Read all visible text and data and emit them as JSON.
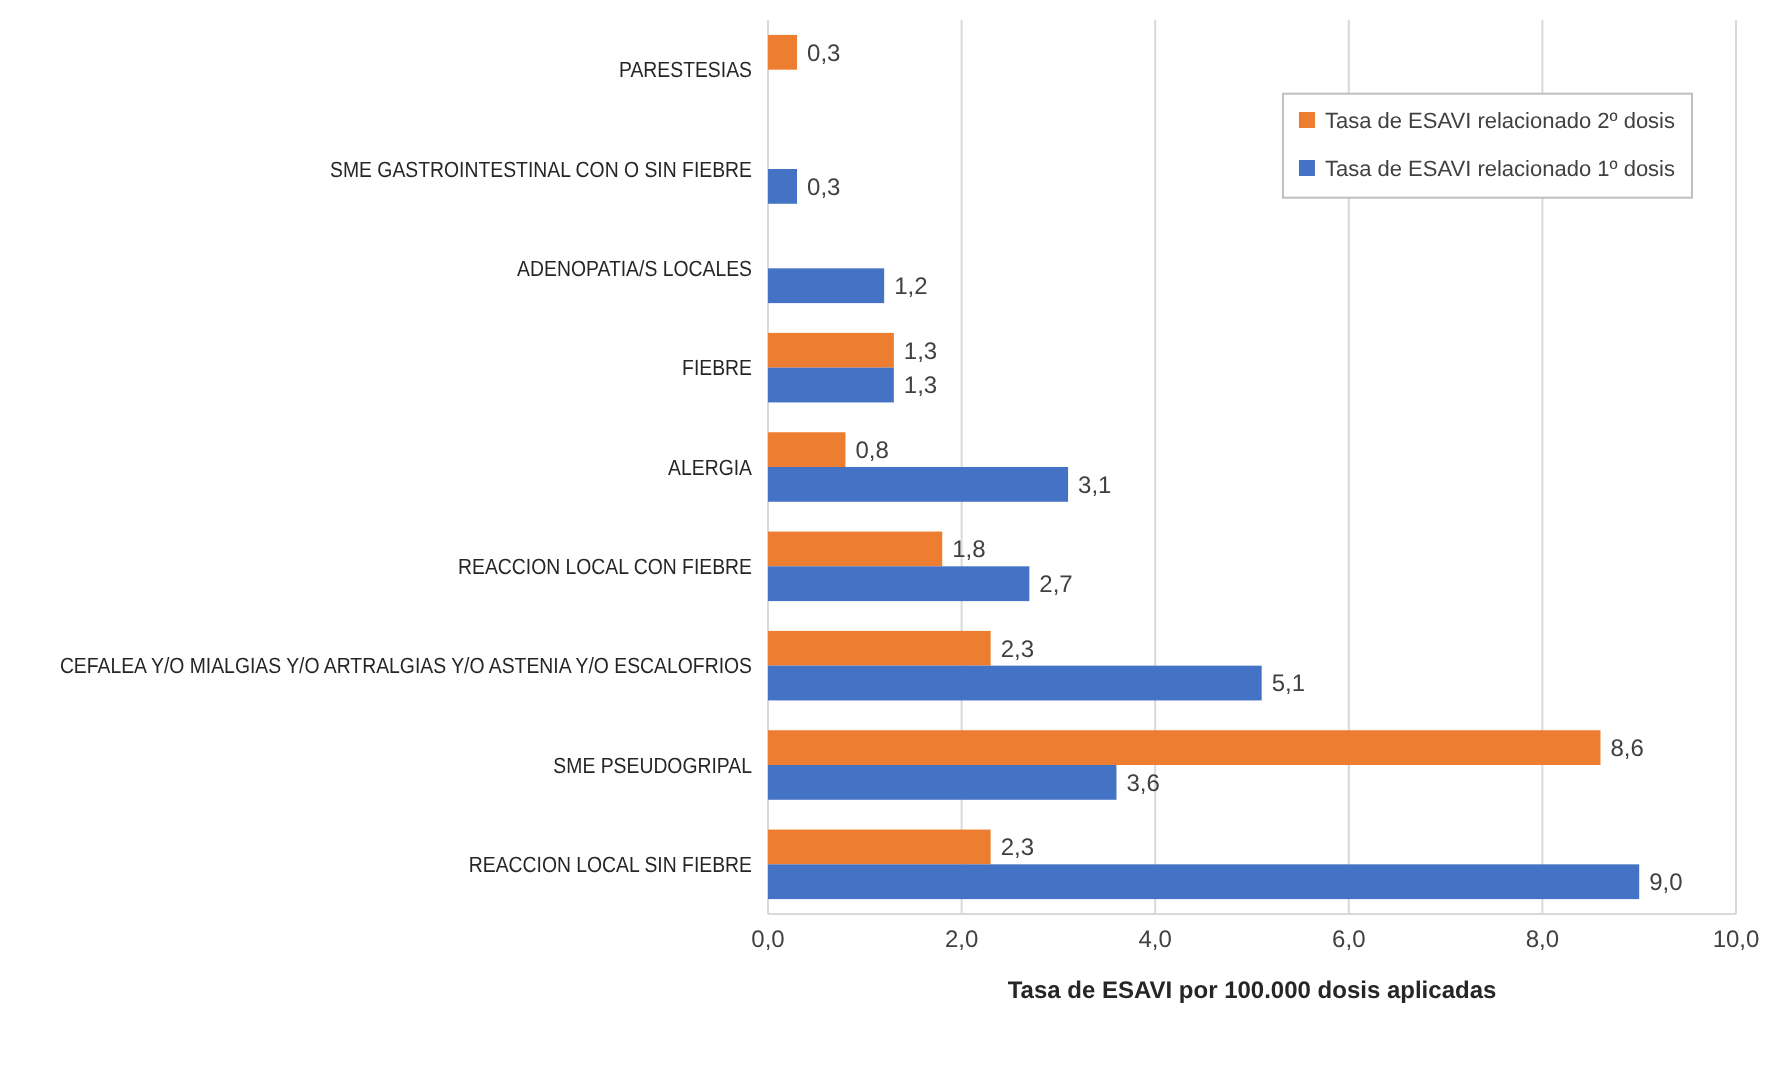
{
  "chart_data": {
    "type": "bar",
    "orientation": "horizontal",
    "xlabel": "Tasa de ESAVI por 100.000 dosis aplicadas",
    "categories": [
      "PARESTESIAS",
      "SME GASTROINTESTINAL CON O SIN FIEBRE",
      "ADENOPATIA/S LOCALES",
      "FIEBRE",
      "ALERGIA",
      "REACCION LOCAL CON FIEBRE",
      "CEFALEA Y/O MIALGIAS Y/O ARTRALGIAS Y/O ASTENIA Y/O ESCALOFRIOS",
      "SME PSEUDOGRIPAL",
      "REACCION LOCAL SIN FIEBRE"
    ],
    "series": [
      {
        "name": "Tasa de ESAVI relacionado 2º dosis",
        "color": "#ed7d31",
        "values": [
          0.3,
          null,
          null,
          1.3,
          0.8,
          1.8,
          2.3,
          8.6,
          2.3
        ],
        "value_labels": [
          "0,3",
          null,
          null,
          "1,3",
          "0,8",
          "1,8",
          "2,3",
          "8,6",
          "2,3"
        ]
      },
      {
        "name": "Tasa de ESAVI relacionado 1º dosis",
        "color": "#4472c4",
        "values": [
          null,
          0.3,
          1.2,
          1.3,
          3.1,
          2.7,
          5.1,
          3.6,
          9.0
        ],
        "value_labels": [
          null,
          "0,3",
          "1,2",
          "1,3",
          "3,1",
          "2,7",
          "5,1",
          "3,6",
          "9,0"
        ]
      }
    ],
    "xlim": [
      0,
      10
    ],
    "xticks": [
      {
        "value": 0,
        "label": "0,0"
      },
      {
        "value": 2,
        "label": "2,0"
      },
      {
        "value": 4,
        "label": "4,0"
      },
      {
        "value": 6,
        "label": "6,0"
      },
      {
        "value": 8,
        "label": "8,0"
      },
      {
        "value": 10,
        "label": "10,0"
      }
    ],
    "grid": "x",
    "legend": "top right"
  }
}
